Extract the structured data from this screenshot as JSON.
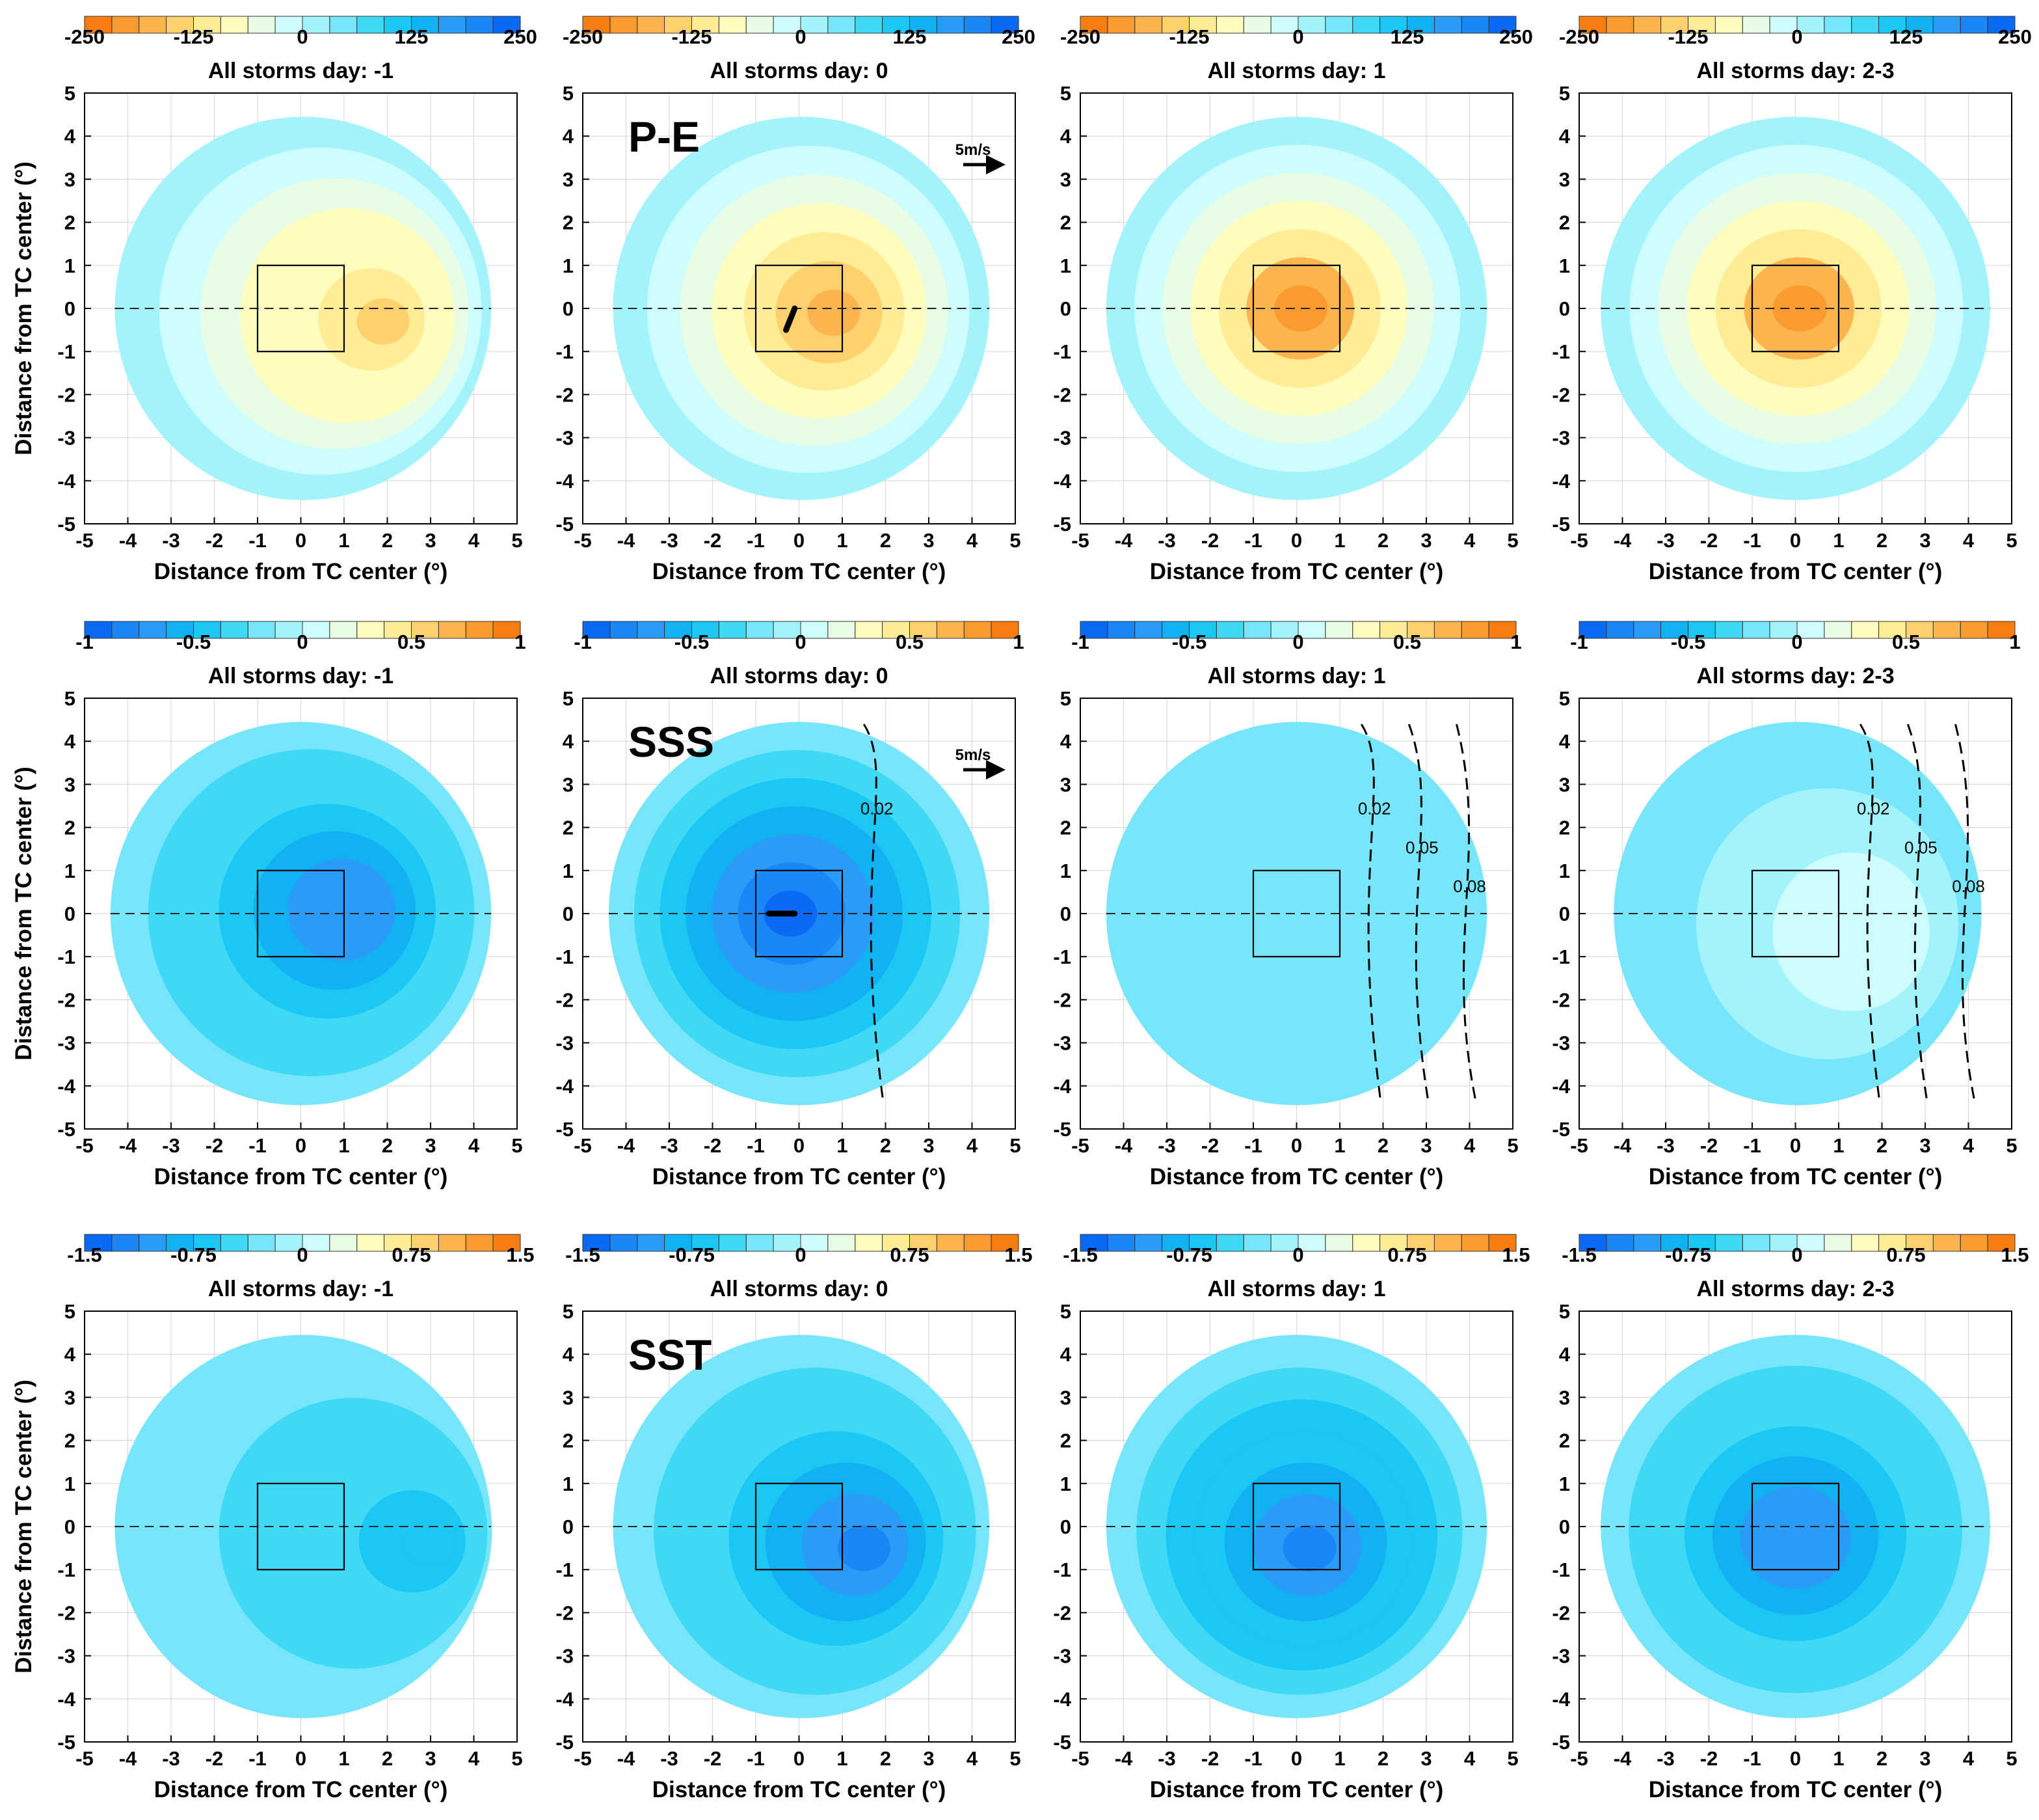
{
  "figure": {
    "xlabel": "Distance from TC center (°)",
    "ylabel": "Distance from TC center (°)",
    "columns": [
      "All storms day: -1",
      "All storms day: 0",
      "All storms day: 1",
      "All storms day: 2-3"
    ],
    "rows": [
      {
        "variable": "P-E",
        "colorbar": {
          "min": -250,
          "max": 250,
          "ticks": [
            "-250",
            "-125",
            "0",
            "125",
            "250"
          ],
          "direction": "orange-to-blue"
        },
        "wind_scale_label": "5m/s"
      },
      {
        "variable": "SSS",
        "colorbar": {
          "min": -1,
          "max": 1,
          "ticks": [
            "-1",
            "-0.5",
            "0",
            "0.5",
            "1"
          ],
          "direction": "blue-to-orange"
        },
        "wind_scale_label": "5m/s"
      },
      {
        "variable": "SST",
        "colorbar": {
          "min": -1.5,
          "max": 1.5,
          "ticks": [
            "-1.5",
            "-0.75",
            "0",
            "0.75",
            "1.5"
          ],
          "direction": "blue-to-orange"
        },
        "wind_scale_label": ""
      }
    ]
  },
  "chart_data": [
    {
      "type": "heatmap",
      "row": "P-E",
      "title": "All storms day: -1",
      "xlim": [
        -5,
        5
      ],
      "ylim": [
        -5,
        5
      ],
      "center": [
        1.9,
        -0.3
      ],
      "min_value": -140,
      "extent_x": [
        -4.3,
        4.4
      ],
      "box": [
        [
          -1,
          -1
        ],
        [
          1,
          1
        ]
      ],
      "contour_labels": []
    },
    {
      "type": "heatmap",
      "row": "P-E",
      "title": "All storms day: 0",
      "xlim": [
        -5,
        5
      ],
      "ylim": [
        -5,
        5
      ],
      "center": [
        0.8,
        -0.1
      ],
      "min_value": -170,
      "extent_x": [
        -4.3,
        4.4
      ],
      "box": [
        [
          -1,
          -1
        ],
        [
          1,
          1
        ]
      ],
      "vector": [
        [
          -0.3,
          -0.5
        ],
        [
          -0.1,
          0
        ]
      ],
      "contour_labels": []
    },
    {
      "type": "heatmap",
      "row": "P-E",
      "title": "All storms day: 1",
      "xlim": [
        -5,
        5
      ],
      "ylim": [
        -5,
        5
      ],
      "center": [
        0.1,
        0
      ],
      "min_value": -190,
      "extent_x": [
        -4.4,
        4.4
      ],
      "box": [
        [
          -1,
          -1
        ],
        [
          1,
          1
        ]
      ],
      "contour_labels": []
    },
    {
      "type": "heatmap",
      "row": "P-E",
      "title": "All storms day: 2-3",
      "xlim": [
        -5,
        5
      ],
      "ylim": [
        -5,
        5
      ],
      "center": [
        0.1,
        0
      ],
      "min_value": -190,
      "extent_x": [
        -4.5,
        4.5
      ],
      "box": [
        [
          -1,
          -1
        ],
        [
          1,
          1
        ]
      ],
      "contour_labels": []
    },
    {
      "type": "heatmap",
      "row": "SSS",
      "title": "All storms day: -1",
      "xlim": [
        -5,
        5
      ],
      "ylim": [
        -5,
        5
      ],
      "center": [
        1.1,
        0.1
      ],
      "min_value": -0.75,
      "extent_x": [
        -4.4,
        4.4
      ],
      "box": [
        [
          -1,
          -1
        ],
        [
          1,
          1
        ]
      ],
      "contour_labels": []
    },
    {
      "type": "heatmap",
      "row": "SSS",
      "title": "All storms day: 0",
      "xlim": [
        -5,
        5
      ],
      "ylim": [
        -5,
        5
      ],
      "center": [
        -0.2,
        0
      ],
      "min_value": -0.95,
      "extent_x": [
        -4.4,
        4.4
      ],
      "box": [
        [
          -1,
          -1
        ],
        [
          1,
          1
        ]
      ],
      "vector": [
        [
          -0.1,
          0
        ],
        [
          -0.7,
          0
        ]
      ],
      "contour_labels": [
        "0.02"
      ]
    },
    {
      "type": "heatmap",
      "row": "SSS",
      "title": "All storms day: 1",
      "xlim": [
        -5,
        5
      ],
      "ylim": [
        -5,
        5
      ],
      "center": [
        -2.5,
        0.5
      ],
      "min_value": -0.2,
      "extent_x": [
        -4.4,
        4.4
      ],
      "box": [
        [
          -1,
          -1
        ],
        [
          1,
          1
        ]
      ],
      "contour_labels": [
        "0.02",
        "0.05",
        "0.08"
      ]
    },
    {
      "type": "heatmap",
      "row": "SSS",
      "title": "All storms day: 2-3",
      "xlim": [
        -5,
        5
      ],
      "ylim": [
        -5,
        5
      ],
      "center": [
        1.8,
        -0.6
      ],
      "min_value": 0.1,
      "extent_x": [
        -4.2,
        4.3
      ],
      "box": [
        [
          -1,
          -1
        ],
        [
          1,
          1
        ]
      ],
      "contour_labels": [
        "0.02",
        "0.05",
        "0.08"
      ]
    },
    {
      "type": "heatmap",
      "row": "SST",
      "title": "All storms day: -1",
      "xlim": [
        -5,
        5
      ],
      "ylim": [
        -5,
        5
      ],
      "center": [
        3,
        -0.4
      ],
      "min_value": -0.65,
      "extent_x": [
        -4.3,
        4.4
      ],
      "box": [
        [
          -1,
          -1
        ],
        [
          1,
          1
        ]
      ],
      "contour_labels": []
    },
    {
      "type": "heatmap",
      "row": "SST",
      "title": "All storms day: 0",
      "xlim": [
        -5,
        5
      ],
      "ylim": [
        -5,
        5
      ],
      "center": [
        1.5,
        -0.5
      ],
      "min_value": -1.15,
      "extent_x": [
        -4.3,
        4.4
      ],
      "box": [
        [
          -1,
          -1
        ],
        [
          1,
          1
        ]
      ],
      "contour_labels": []
    },
    {
      "type": "heatmap",
      "row": "SST",
      "title": "All storms day: 1",
      "xlim": [
        -5,
        5
      ],
      "ylim": [
        -5,
        5
      ],
      "center": [
        0.3,
        -0.5
      ],
      "min_value": -1.2,
      "extent_x": [
        -4.4,
        4.4
      ],
      "box": [
        [
          -1,
          -1
        ],
        [
          1,
          1
        ]
      ],
      "contour_labels": []
    },
    {
      "type": "heatmap",
      "row": "SST",
      "title": "All storms day: 2-3",
      "xlim": [
        -5,
        5
      ],
      "ylim": [
        -5,
        5
      ],
      "center": [
        0,
        -0.3
      ],
      "min_value": -1.1,
      "extent_x": [
        -4.5,
        4.5
      ],
      "box": [
        [
          -1,
          -1
        ],
        [
          1,
          1
        ]
      ],
      "contour_labels": []
    }
  ]
}
